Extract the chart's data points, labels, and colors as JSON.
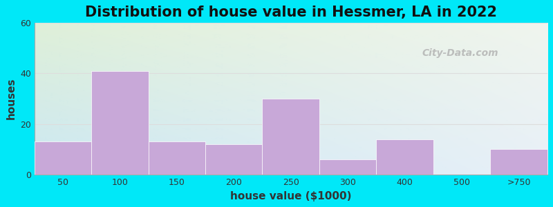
{
  "title": "Distribution of house value in Hessmer, LA in 2022",
  "xlabel": "house value ($1000)",
  "ylabel": "houses",
  "bar_labels": [
    "50",
    "100",
    "150",
    "200",
    "250",
    "300",
    "400",
    "500",
    ">750"
  ],
  "bar_values": [
    13,
    41,
    13,
    12,
    30,
    6,
    14,
    0,
    10
  ],
  "bar_color": "#c8a8d8",
  "bar_edge_color": "#c8a8d8",
  "ylim": [
    0,
    60
  ],
  "yticks": [
    0,
    20,
    40,
    60
  ],
  "background_outer": "#00e8f8",
  "background_top_left": "#dff0d8",
  "background_top_right": "#f5f5f0",
  "background_bottom": "#cce8f0",
  "watermark": "City-Data.com",
  "title_fontsize": 15,
  "axis_label_fontsize": 11,
  "bar_edges": [
    0,
    1,
    2,
    3,
    4,
    5,
    6,
    7,
    8,
    9
  ]
}
